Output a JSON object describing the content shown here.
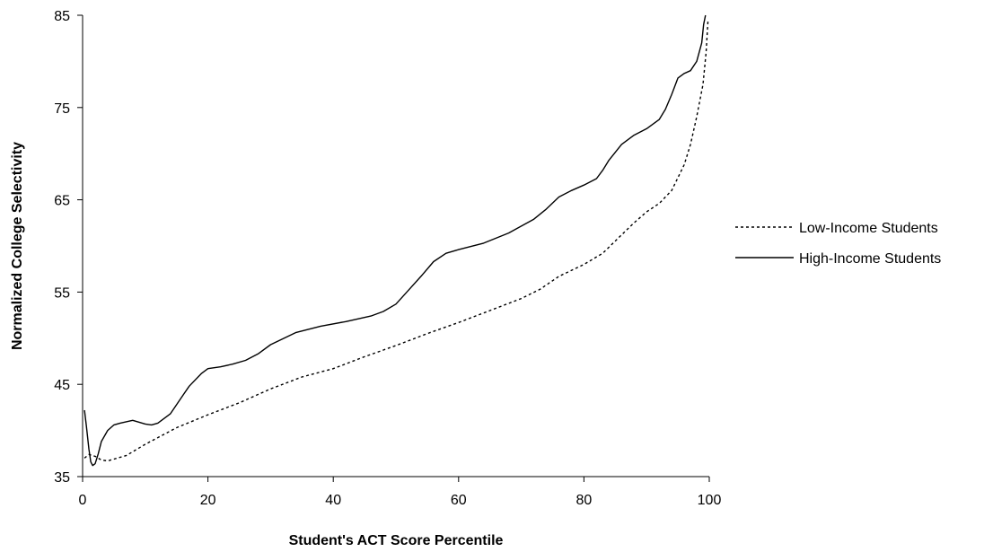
{
  "chart_data": {
    "type": "line",
    "title": "",
    "xlabel": "Student's ACT Score Percentile",
    "ylabel": "Normalized College Selectivity",
    "xlim": [
      0,
      100
    ],
    "ylim": [
      35,
      85
    ],
    "xticks": [
      0,
      20,
      40,
      60,
      80,
      100
    ],
    "yticks": [
      35,
      45,
      55,
      65,
      75,
      85
    ],
    "grid": false,
    "legend_position": "right",
    "series": [
      {
        "name": "Low-Income Students",
        "style": "dotted",
        "color": "#000000",
        "points": [
          [
            0.3,
            37.0
          ],
          [
            1,
            37.4
          ],
          [
            2,
            37.2
          ],
          [
            3,
            36.8
          ],
          [
            4,
            36.7
          ],
          [
            5,
            36.9
          ],
          [
            7,
            37.3
          ],
          [
            10,
            38.5
          ],
          [
            15,
            40.3
          ],
          [
            20,
            41.7
          ],
          [
            25,
            43.0
          ],
          [
            30,
            44.5
          ],
          [
            35,
            45.8
          ],
          [
            40,
            46.7
          ],
          [
            45,
            48.0
          ],
          [
            50,
            49.2
          ],
          [
            55,
            50.5
          ],
          [
            60,
            51.7
          ],
          [
            65,
            53.0
          ],
          [
            70,
            54.3
          ],
          [
            73,
            55.3
          ],
          [
            76,
            56.7
          ],
          [
            80,
            58.0
          ],
          [
            83,
            59.2
          ],
          [
            86,
            61.2
          ],
          [
            88,
            62.5
          ],
          [
            90,
            63.7
          ],
          [
            92,
            64.6
          ],
          [
            94,
            66.0
          ],
          [
            96,
            68.8
          ],
          [
            97,
            71.0
          ],
          [
            98,
            74.0
          ],
          [
            99,
            77.5
          ],
          [
            99.5,
            81.0
          ],
          [
            99.8,
            84.5
          ]
        ]
      },
      {
        "name": "High-Income Students",
        "style": "solid",
        "color": "#000000",
        "points": [
          [
            0.3,
            42.2
          ],
          [
            0.6,
            40.5
          ],
          [
            1.0,
            38.0
          ],
          [
            1.3,
            36.6
          ],
          [
            1.6,
            36.2
          ],
          [
            2.0,
            36.4
          ],
          [
            2.5,
            37.5
          ],
          [
            3.0,
            38.8
          ],
          [
            4,
            40.0
          ],
          [
            5,
            40.6
          ],
          [
            6,
            40.8
          ],
          [
            8,
            41.1
          ],
          [
            10,
            40.7
          ],
          [
            11,
            40.6
          ],
          [
            12,
            40.8
          ],
          [
            14,
            41.8
          ],
          [
            16,
            43.8
          ],
          [
            17,
            44.8
          ],
          [
            19,
            46.2
          ],
          [
            20,
            46.7
          ],
          [
            22,
            46.9
          ],
          [
            24,
            47.2
          ],
          [
            26,
            47.6
          ],
          [
            28,
            48.3
          ],
          [
            30,
            49.3
          ],
          [
            34,
            50.6
          ],
          [
            38,
            51.3
          ],
          [
            42,
            51.8
          ],
          [
            46,
            52.4
          ],
          [
            48,
            52.9
          ],
          [
            50,
            53.7
          ],
          [
            52,
            55.2
          ],
          [
            54,
            56.7
          ],
          [
            56,
            58.3
          ],
          [
            58,
            59.2
          ],
          [
            60,
            59.6
          ],
          [
            64,
            60.3
          ],
          [
            68,
            61.4
          ],
          [
            72,
            62.9
          ],
          [
            74,
            64.0
          ],
          [
            76,
            65.3
          ],
          [
            78,
            66.0
          ],
          [
            80,
            66.6
          ],
          [
            82,
            67.3
          ],
          [
            83,
            68.2
          ],
          [
            84,
            69.3
          ],
          [
            86,
            71.0
          ],
          [
            88,
            72.0
          ],
          [
            90,
            72.7
          ],
          [
            92,
            73.7
          ],
          [
            93,
            74.8
          ],
          [
            94,
            76.4
          ],
          [
            95,
            78.2
          ],
          [
            96,
            78.7
          ],
          [
            97,
            79.0
          ],
          [
            98,
            80.0
          ],
          [
            98.8,
            82.0
          ],
          [
            99.1,
            84.0
          ],
          [
            99.4,
            85.0
          ]
        ]
      }
    ]
  }
}
